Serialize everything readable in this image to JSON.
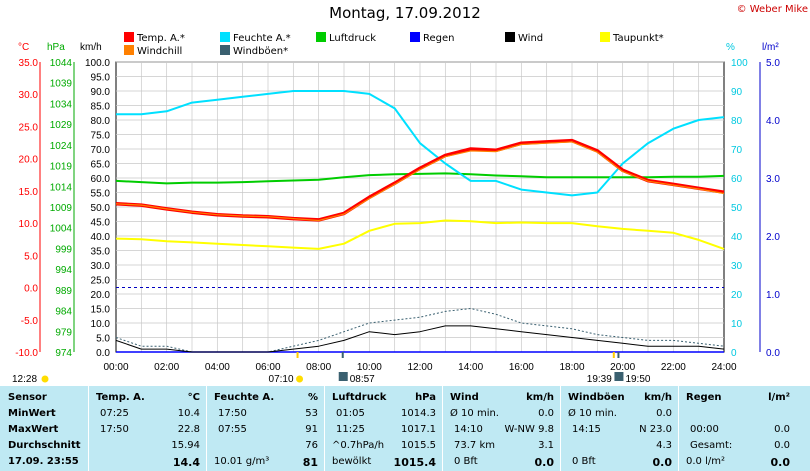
{
  "title": "Montag, 17.09.2012",
  "copyright": "© Weber Mike",
  "legend": [
    {
      "label": "Temp. A.*",
      "color": "#ff0000"
    },
    {
      "label": "Feuchte A.*",
      "color": "#00e0ff"
    },
    {
      "label": "Luftdruck",
      "color": "#00cc00"
    },
    {
      "label": "Regen",
      "color": "#0000ff"
    },
    {
      "label": "Wind",
      "color": "#000000"
    },
    {
      "label": "Taupunkt*",
      "color": "#ffff00"
    },
    {
      "label": "Windchill",
      "color": "#ff8000"
    },
    {
      "label": "Windböen*",
      "color": "#3a6070"
    }
  ],
  "axis_units": {
    "temp": "°C",
    "pressure": "hPa",
    "wind": "km/h",
    "humidity": "%",
    "rain": "l/m²"
  },
  "axes": {
    "temp_ticks": [
      "35.0",
      "30.0",
      "25.0",
      "20.0",
      "15.0",
      "10.0",
      "5.0",
      "0.0",
      "-5.0",
      "-10.0"
    ],
    "pressure_ticks": [
      "1044",
      "1039",
      "1034",
      "1029",
      "1024",
      "1019",
      "1014",
      "1009",
      "1004",
      "999",
      "994",
      "989",
      "984",
      "979",
      "974"
    ],
    "wind_ticks": [
      "100.0",
      "95.0",
      "90.0",
      "85.0",
      "80.0",
      "75.0",
      "70.0",
      "65.0",
      "60.0",
      "55.0",
      "50.0",
      "45.0",
      "40.0",
      "35.0",
      "30.0",
      "25.0",
      "20.0",
      "15.0",
      "10.0",
      "5.0",
      "0.0"
    ],
    "humidity_ticks": [
      "100",
      "90",
      "80",
      "70",
      "60",
      "50",
      "40",
      "30",
      "20",
      "10",
      "0"
    ],
    "rain_ticks": [
      "5.0",
      "4.0",
      "3.0",
      "2.0",
      "1.0",
      "0.0"
    ],
    "x_ticks": [
      "00:00",
      "02:00",
      "04:00",
      "06:00",
      "08:00",
      "10:00",
      "12:00",
      "14:00",
      "16:00",
      "18:00",
      "20:00",
      "22:00",
      "24:00"
    ]
  },
  "sun": {
    "sunrise": "07:10",
    "sunset": "19:39",
    "moonrise": "08:57",
    "moonset": "19:50",
    "daylight": "12:28"
  },
  "chart_data": {
    "type": "line",
    "x": [
      0,
      1,
      2,
      3,
      4,
      5,
      6,
      7,
      8,
      9,
      10,
      11,
      12,
      13,
      14,
      15,
      16,
      17,
      18,
      19,
      20,
      21,
      22,
      23,
      24
    ],
    "xlim": [
      0,
      24
    ],
    "series": [
      {
        "name": "Temp. A.*",
        "axis": "temp",
        "values": [
          13.0,
          12.8,
          12.2,
          11.7,
          11.3,
          11.1,
          11.0,
          10.7,
          10.5,
          11.5,
          14.0,
          16.2,
          18.5,
          20.5,
          21.5,
          21.3,
          22.4,
          22.6,
          22.8,
          21.2,
          18.2,
          16.6,
          16.0,
          15.4,
          14.8
        ]
      },
      {
        "name": "Feuchte A.*",
        "axis": "humidity",
        "values": [
          82,
          82,
          83,
          86,
          87,
          88,
          89,
          90,
          90,
          90,
          89,
          84,
          72,
          65,
          59,
          59,
          56,
          55,
          54,
          55,
          65,
          72,
          77,
          80,
          81
        ]
      },
      {
        "name": "Luftdruck",
        "axis": "pressure",
        "values": [
          1015.3,
          1015.0,
          1014.7,
          1014.9,
          1014.9,
          1015.0,
          1015.2,
          1015.4,
          1015.6,
          1016.2,
          1016.7,
          1016.9,
          1017.0,
          1017.1,
          1016.9,
          1016.6,
          1016.4,
          1016.2,
          1016.2,
          1016.2,
          1016.2,
          1016.2,
          1016.3,
          1016.3,
          1016.5
        ]
      },
      {
        "name": "Taupunkt*",
        "axis": "temp",
        "values": [
          7.6,
          7.5,
          7.2,
          7.0,
          6.8,
          6.6,
          6.4,
          6.2,
          6.0,
          6.8,
          8.8,
          9.9,
          10.0,
          10.4,
          10.3,
          10.0,
          10.1,
          10.0,
          10.0,
          9.5,
          9.1,
          8.8,
          8.5,
          7.4,
          6.0
        ]
      },
      {
        "name": "Windchill",
        "axis": "temp",
        "values": [
          13.0,
          12.8,
          12.2,
          11.7,
          11.3,
          11.1,
          11.0,
          10.7,
          10.4,
          11.4,
          13.8,
          16.0,
          18.3,
          20.3,
          21.2,
          21.1,
          22.2,
          22.4,
          22.6,
          21.0,
          18.0,
          16.5,
          15.9,
          15.3,
          14.6
        ]
      },
      {
        "name": "Wind",
        "axis": "wind",
        "values": [
          4,
          1,
          1,
          0,
          0,
          0,
          0,
          1,
          2,
          4,
          7,
          6,
          7,
          9,
          9,
          8,
          7,
          6,
          5,
          4,
          3,
          2,
          2,
          2,
          1
        ]
      },
      {
        "name": "Windböen*",
        "axis": "wind",
        "values": [
          5,
          2,
          2,
          0,
          0,
          0,
          0,
          2,
          4,
          7,
          10,
          11,
          12,
          14,
          15,
          13,
          10,
          9,
          8,
          6,
          5,
          4,
          4,
          3,
          2
        ]
      },
      {
        "name": "Regen",
        "axis": "rain",
        "values": [
          0,
          0,
          0,
          0,
          0,
          0,
          0,
          0,
          0,
          0,
          0,
          0,
          0,
          0,
          0,
          0,
          0,
          0,
          0,
          0,
          0,
          0,
          0,
          0,
          0
        ]
      }
    ],
    "reference_line": {
      "axis": "temp",
      "value": 0
    },
    "ylim_temp": [
      -10,
      35
    ],
    "ylim_pressure": [
      974,
      1044
    ],
    "ylim_wind": [
      0,
      100
    ],
    "ylim_humidity": [
      0,
      100
    ],
    "ylim_rain": [
      0,
      5
    ],
    "grid": true
  },
  "table": {
    "row_labels": [
      "Sensor",
      "MinWert",
      "MaxWert",
      "Durchschnitt",
      "17.09. 23:55"
    ],
    "temp": {
      "header": "Temp. A.",
      "unit": "°C",
      "min_time": "07:25",
      "min": "10.4",
      "max_time": "17:50",
      "max": "22.8",
      "avg": "15.94",
      "current": "14.4"
    },
    "humidity": {
      "header": "Feuchte A.",
      "unit": "%",
      "min_time": "17:50",
      "min": "53",
      "max_time": "07:55",
      "max": "91",
      "avg": "76",
      "abs": "10.01 g/m³",
      "current": "81"
    },
    "pressure": {
      "header": "Luftdruck",
      "unit": "hPa",
      "min_time": "01:05",
      "min": "1014.3",
      "max_time": "11:25",
      "max": "1017.1",
      "trend": "^0.7hPa/h",
      "avg": "1015.5",
      "weather": "bewölkt",
      "current": "1015.4"
    },
    "wind": {
      "header": "Wind",
      "unit": "km/h",
      "min_label": "Ø 10 min.",
      "min": "0.0",
      "max_time": "14:10",
      "max": "W-NW 9.8",
      "km": "73.7 km",
      "avg": "3.1",
      "bft": "0 Bft",
      "current": "0.0"
    },
    "gusts": {
      "header": "Windböen",
      "unit": "km/h",
      "min_label": "Ø 10 min.",
      "min": "0.0",
      "max_time": "14:15",
      "max": "N 23.0",
      "avg": "4.3",
      "bft": "0 Bft",
      "current": "0.0"
    },
    "rain": {
      "header": "Regen",
      "unit": "l/m²",
      "max_time": "00:00",
      "max": "0.0",
      "total_label": "Gesamt:",
      "total": "0.0",
      "current": "0.0 l/m²",
      "current_val": "0.0"
    }
  }
}
